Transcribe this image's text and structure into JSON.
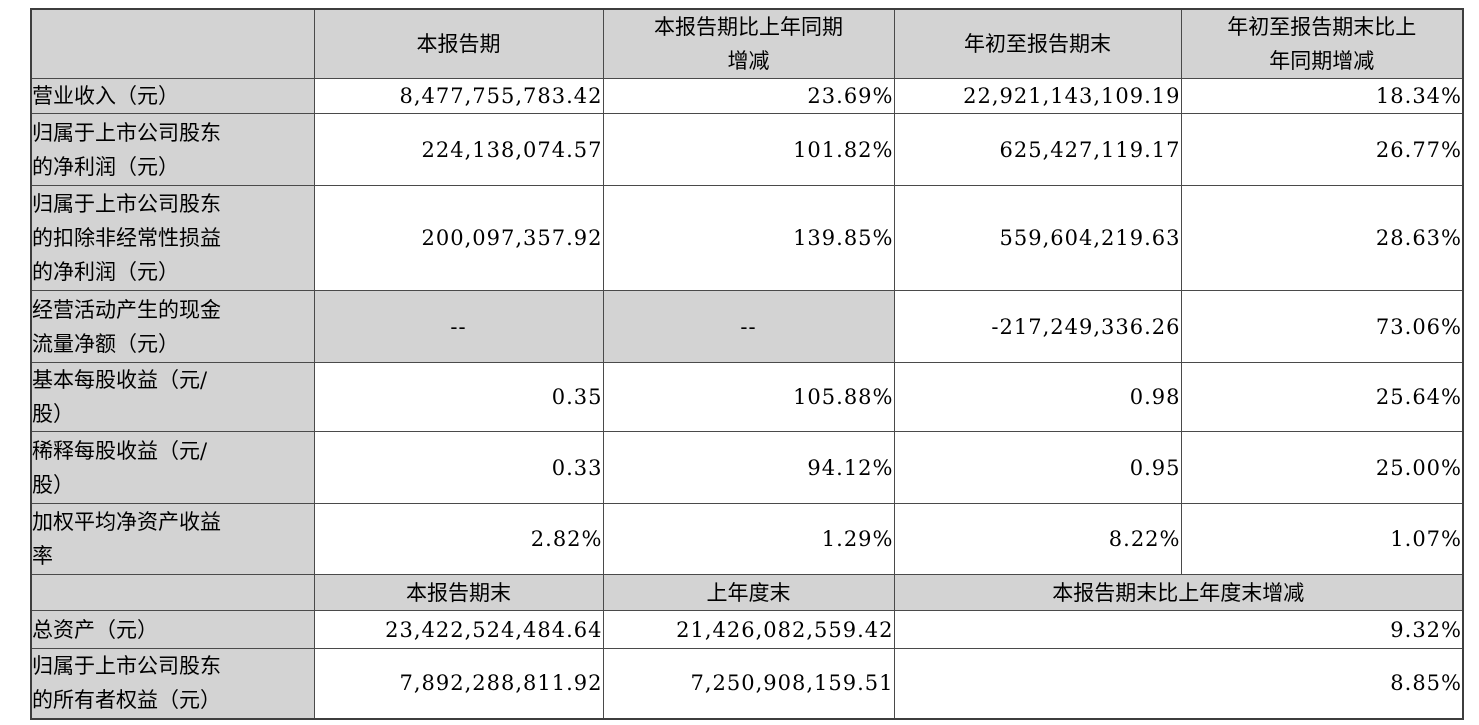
{
  "colors": {
    "page_background": "#ffffff",
    "shaded_cell_background": "#d3d3d3",
    "cell_background": "#ffffff",
    "border": "#4a4a4a",
    "text": "#000000"
  },
  "table": {
    "header": {
      "col0": "",
      "col1": "本报告期",
      "col2": "本报告期比上年同期\n增减",
      "col3": "年初至报告期末",
      "col4": "年初至报告期末比上\n年同期增减"
    },
    "rows": [
      {
        "label": "营业收入（元）",
        "current_period": "8,477,755,783.42",
        "yoy_change": "23.69%",
        "year_to_date": "22,921,143,109.19",
        "ytd_yoy_change": "18.34%"
      },
      {
        "label": "归属于上市公司股东\n的净利润（元）",
        "current_period": "224,138,074.57",
        "yoy_change": "101.82%",
        "year_to_date": "625,427,119.17",
        "ytd_yoy_change": "26.77%"
      },
      {
        "label": "归属于上市公司股东\n的扣除非经常性损益\n的净利润（元）",
        "current_period": "200,097,357.92",
        "yoy_change": "139.85%",
        "year_to_date": "559,604,219.63",
        "ytd_yoy_change": "28.63%"
      },
      {
        "label": "经营活动产生的现金\n流量净额（元）",
        "current_period": "--",
        "yoy_change": "--",
        "year_to_date": "-217,249,336.26",
        "ytd_yoy_change": "73.06%"
      },
      {
        "label": "基本每股收益（元/\n股）",
        "current_period": "0.35",
        "yoy_change": "105.88%",
        "year_to_date": "0.98",
        "ytd_yoy_change": "25.64%"
      },
      {
        "label": "稀释每股收益（元/\n股）",
        "current_period": "0.33",
        "yoy_change": "94.12%",
        "year_to_date": "0.95",
        "ytd_yoy_change": "25.00%"
      },
      {
        "label": "加权平均净资产收益\n率",
        "current_period": "2.82%",
        "yoy_change": "1.29%",
        "year_to_date": "8.22%",
        "ytd_yoy_change": "1.07%"
      }
    ],
    "sub_header": {
      "col0": "",
      "col1": "本报告期末",
      "col2": "上年度末",
      "col3_4": "本报告期末比上年度末增减"
    },
    "bottom_rows": [
      {
        "label": "总资产（元）",
        "end_of_period": "23,422,524,484.64",
        "end_of_prior_year": "21,426,082,559.42",
        "change": "9.32%"
      },
      {
        "label": "归属于上市公司股东\n的所有者权益（元）",
        "end_of_period": "7,892,288,811.92",
        "end_of_prior_year": "7,250,908,159.51",
        "change": "8.85%"
      }
    ]
  }
}
